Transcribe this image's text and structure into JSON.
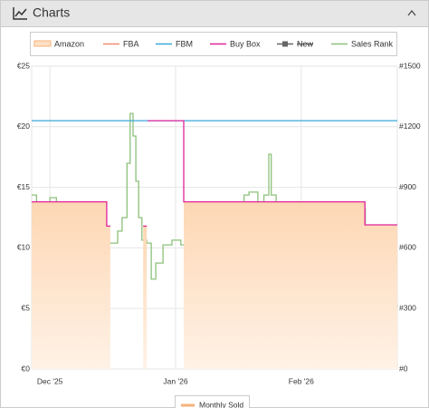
{
  "header": {
    "title": "Charts"
  },
  "chart_data": {
    "type": "line",
    "step": true,
    "grid": true,
    "xlim": [
      -4.5,
      85.7
    ],
    "ylim": [
      0,
      25
    ],
    "y2lim": [
      0,
      1500
    ],
    "xticks": [
      {
        "value": 0,
        "label": "Dec '25"
      },
      {
        "value": 31,
        "label": "Jan '26"
      },
      {
        "value": 62,
        "label": "Feb '26"
      }
    ],
    "yticks": [
      {
        "value": 0,
        "label": "€0"
      },
      {
        "value": 5,
        "label": "€5"
      },
      {
        "value": 10,
        "label": "€10"
      },
      {
        "value": 15,
        "label": "€15"
      },
      {
        "value": 20,
        "label": "€20"
      },
      {
        "value": 25,
        "label": "€25"
      }
    ],
    "y2ticks": [
      {
        "value": 0,
        "label": "#0"
      },
      {
        "value": 300,
        "label": "#300"
      },
      {
        "value": 600,
        "label": "#600"
      },
      {
        "value": 900,
        "label": "#900"
      },
      {
        "value": 1200,
        "label": "#1200"
      },
      {
        "value": 1500,
        "label": "#1500"
      }
    ],
    "series": [
      {
        "name": "Amazon",
        "color": "#f7b27a",
        "fill": true,
        "x": [
          -4.5,
          14.0,
          14.9,
          23.0,
          23.9,
          33.0,
          77.7,
          85.7
        ],
        "values": [
          13.8,
          11.8,
          null,
          11.8,
          null,
          13.8,
          11.9,
          11.9
        ]
      },
      {
        "name": "FBA",
        "color": "#f08a70",
        "x": [],
        "values": []
      },
      {
        "name": "FBM",
        "color": "#3aa7d8",
        "x": [
          -4.5,
          85.7
        ],
        "values": [
          20.5,
          20.5
        ]
      },
      {
        "name": "Buy Box",
        "color": "#e0249a",
        "x": [
          -4.5,
          14.0,
          14.9,
          23.0,
          23.9,
          24.1,
          33.0,
          77.7,
          85.7
        ],
        "values": [
          13.8,
          11.8,
          null,
          11.8,
          null,
          20.5,
          13.8,
          11.9,
          11.9
        ]
      },
      {
        "name": "New",
        "color": "#666666",
        "hidden": true,
        "x": [],
        "values": []
      },
      {
        "name": "Sales Rank",
        "color": "#8cc07a",
        "axis": "y2",
        "x": [
          -4.5,
          -3.3,
          -1.1,
          0,
          1.6,
          3.3,
          4.5,
          6.0,
          7.4,
          8.9,
          10.0,
          11.2,
          12.3,
          13.4,
          14.5,
          16.7,
          17.8,
          19.0,
          19.8,
          20.5,
          21.2,
          21.9,
          22.7,
          23.9,
          25.0,
          26.1,
          27.9,
          30.1,
          32.3,
          33.5,
          34.6,
          35.7,
          37.9,
          39.5,
          41.3,
          43.5,
          45.3,
          46.8,
          47.9,
          49.1,
          51.3,
          52.8,
          54.0,
          54.6,
          55.8,
          56.9,
          59.1,
          60.2,
          61.3,
          62.4,
          64.7,
          65.8,
          66.9,
          69.1,
          71.4,
          73.6,
          75.8,
          76.9,
          77.8,
          78.7,
          79.6,
          80.9,
          82.5,
          83.6,
          84.7,
          85.6
        ],
        "values": [
          862,
          795,
          817,
          849,
          750,
          498,
          570,
          409,
          525,
          651,
          525,
          669,
          481,
          579,
          624,
          683,
          750,
          1019,
          1266,
          1154,
          930,
          750,
          638,
          624,
          445,
          525,
          615,
          638,
          615,
          525,
          570,
          481,
          458,
          346,
          481,
          615,
          683,
          795,
          862,
          876,
          813,
          862,
          1064,
          862,
          795,
          714,
          768,
          615,
          481,
          638,
          813,
          624,
          525,
          481,
          570,
          615,
          570,
          795,
          660,
          346,
          436,
          382,
          346,
          382,
          323,
          301
        ]
      }
    ]
  },
  "monthly_sold_legend": {
    "label": "Monthly Sold"
  }
}
